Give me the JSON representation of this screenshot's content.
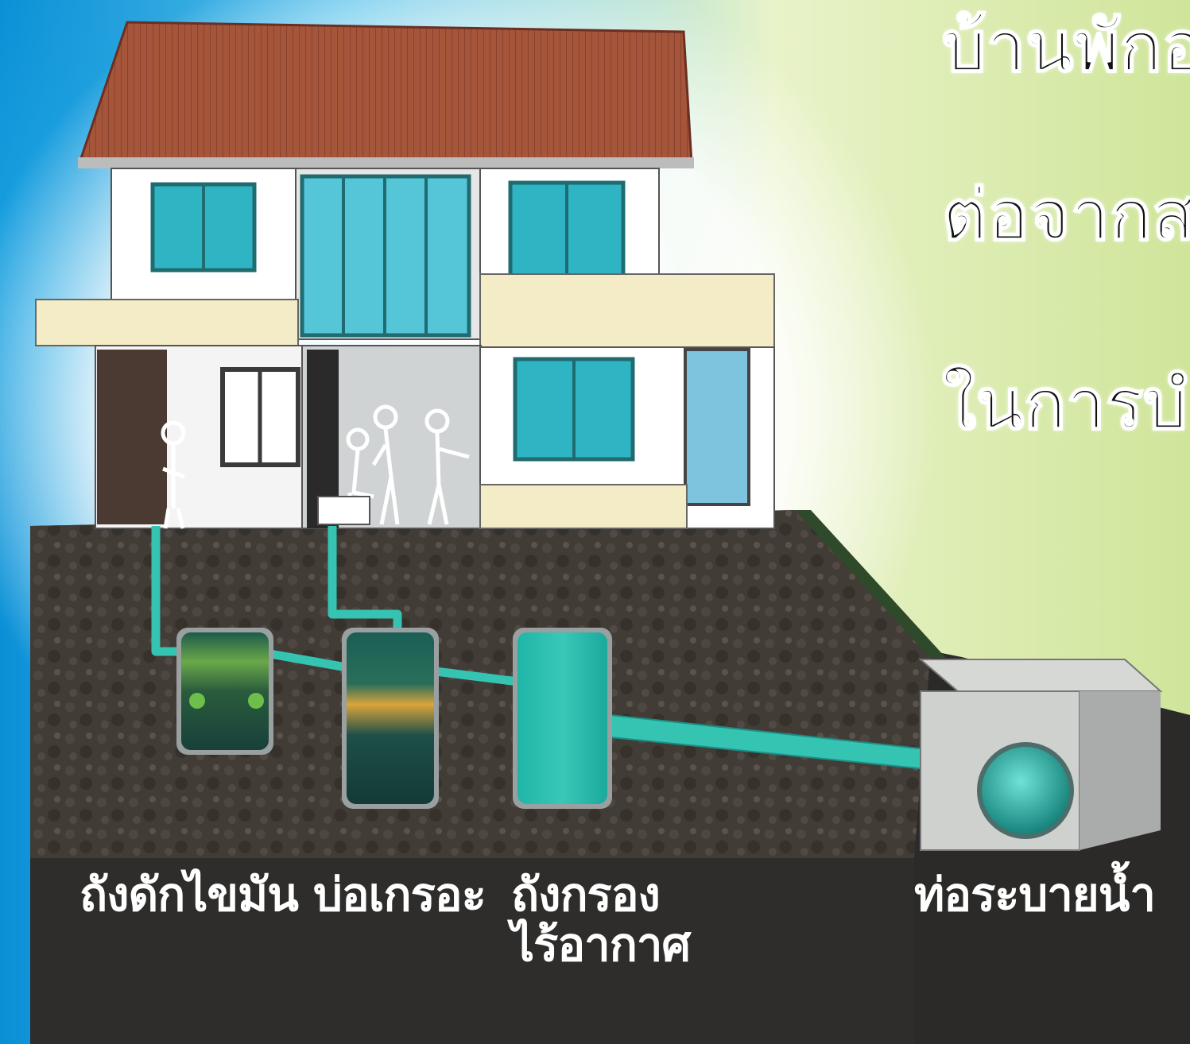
{
  "headline": {
    "line1": "บ้านพักอ",
    "line2": "ต่อจากส",
    "line3": "ในการบํ"
  },
  "labels": {
    "grease_trap": "ถังดักไขมัน",
    "septic_tank": "บ่อเกรอะ",
    "anaerobic_filter": "ถังกรอง\nไร้อากาศ",
    "drain_pipe": "ท่อระบายน้ำ"
  },
  "colors": {
    "sky_left": "#1aa3e0",
    "sky_right": "#d9e89a",
    "roof": "#a5553a",
    "wall": "#ffffff",
    "beam": "#f3ecc6",
    "window": "#2fb4c4",
    "soil": "#3b3632",
    "pipe": "#35c3b2",
    "ground_base": "#2e2e2e",
    "grass": "#2f4a2a"
  }
}
